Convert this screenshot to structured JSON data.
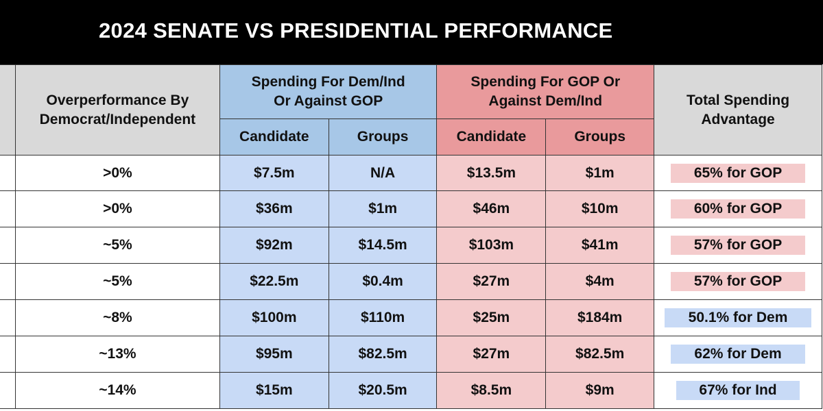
{
  "title": "2024 SENATE VS PRESIDENTIAL PERFORMANCE",
  "colors": {
    "header_bg": "#000000",
    "dem": "#c8daf6",
    "dem_header": "#a7c7e7",
    "gop": "#f4cbcc",
    "gop_header": "#e99a9c",
    "neutral_header": "#d9d9d9"
  },
  "chart_data": {
    "type": "table",
    "title": "2024 SENATE VS PRESIDENTIAL PERFORMANCE",
    "group_headers": {
      "overperformance": "Overperformance By Democrat/Independent",
      "dem": "Spending For Dem/Ind Or Against GOP",
      "gop": "Spending For GOP Or Against Dem/Ind",
      "total": "Total Spending Advantage"
    },
    "sub_headers": {
      "dem_candidate": "Candidate",
      "dem_groups": "Groups",
      "gop_candidate": "Candidate",
      "gop_groups": "Groups"
    },
    "rows": [
      {
        "overperformance": ">0%",
        "dem_candidate": "$7.5m",
        "dem_groups": "N/A",
        "gop_candidate": "$13.5m",
        "gop_groups": "$1m",
        "advantage": "65% for GOP",
        "advantage_party": "GOP"
      },
      {
        "overperformance": ">0%",
        "dem_candidate": "$36m",
        "dem_groups": "$1m",
        "gop_candidate": "$46m",
        "gop_groups": "$10m",
        "advantage": "60% for GOP",
        "advantage_party": "GOP"
      },
      {
        "overperformance": "~5%",
        "dem_candidate": "$92m",
        "dem_groups": "$14.5m",
        "gop_candidate": "$103m",
        "gop_groups": "$41m",
        "advantage": "57% for GOP",
        "advantage_party": "GOP"
      },
      {
        "overperformance": "~5%",
        "dem_candidate": "$22.5m",
        "dem_groups": "$0.4m",
        "gop_candidate": "$27m",
        "gop_groups": "$4m",
        "advantage": "57% for GOP",
        "advantage_party": "GOP"
      },
      {
        "overperformance": "~8%",
        "dem_candidate": "$100m",
        "dem_groups": "$110m",
        "gop_candidate": "$25m",
        "gop_groups": "$184m",
        "advantage": "50.1% for Dem",
        "advantage_party": "Dem"
      },
      {
        "overperformance": "~13%",
        "dem_candidate": "$95m",
        "dem_groups": "$82.5m",
        "gop_candidate": "$27m",
        "gop_groups": "$82.5m",
        "advantage": "62% for Dem",
        "advantage_party": "Dem"
      },
      {
        "overperformance": "~14%",
        "dem_candidate": "$15m",
        "dem_groups": "$20.5m",
        "gop_candidate": "$8.5m",
        "gop_groups": "$9m",
        "advantage": "67% for Ind",
        "advantage_party": "Ind"
      }
    ]
  }
}
